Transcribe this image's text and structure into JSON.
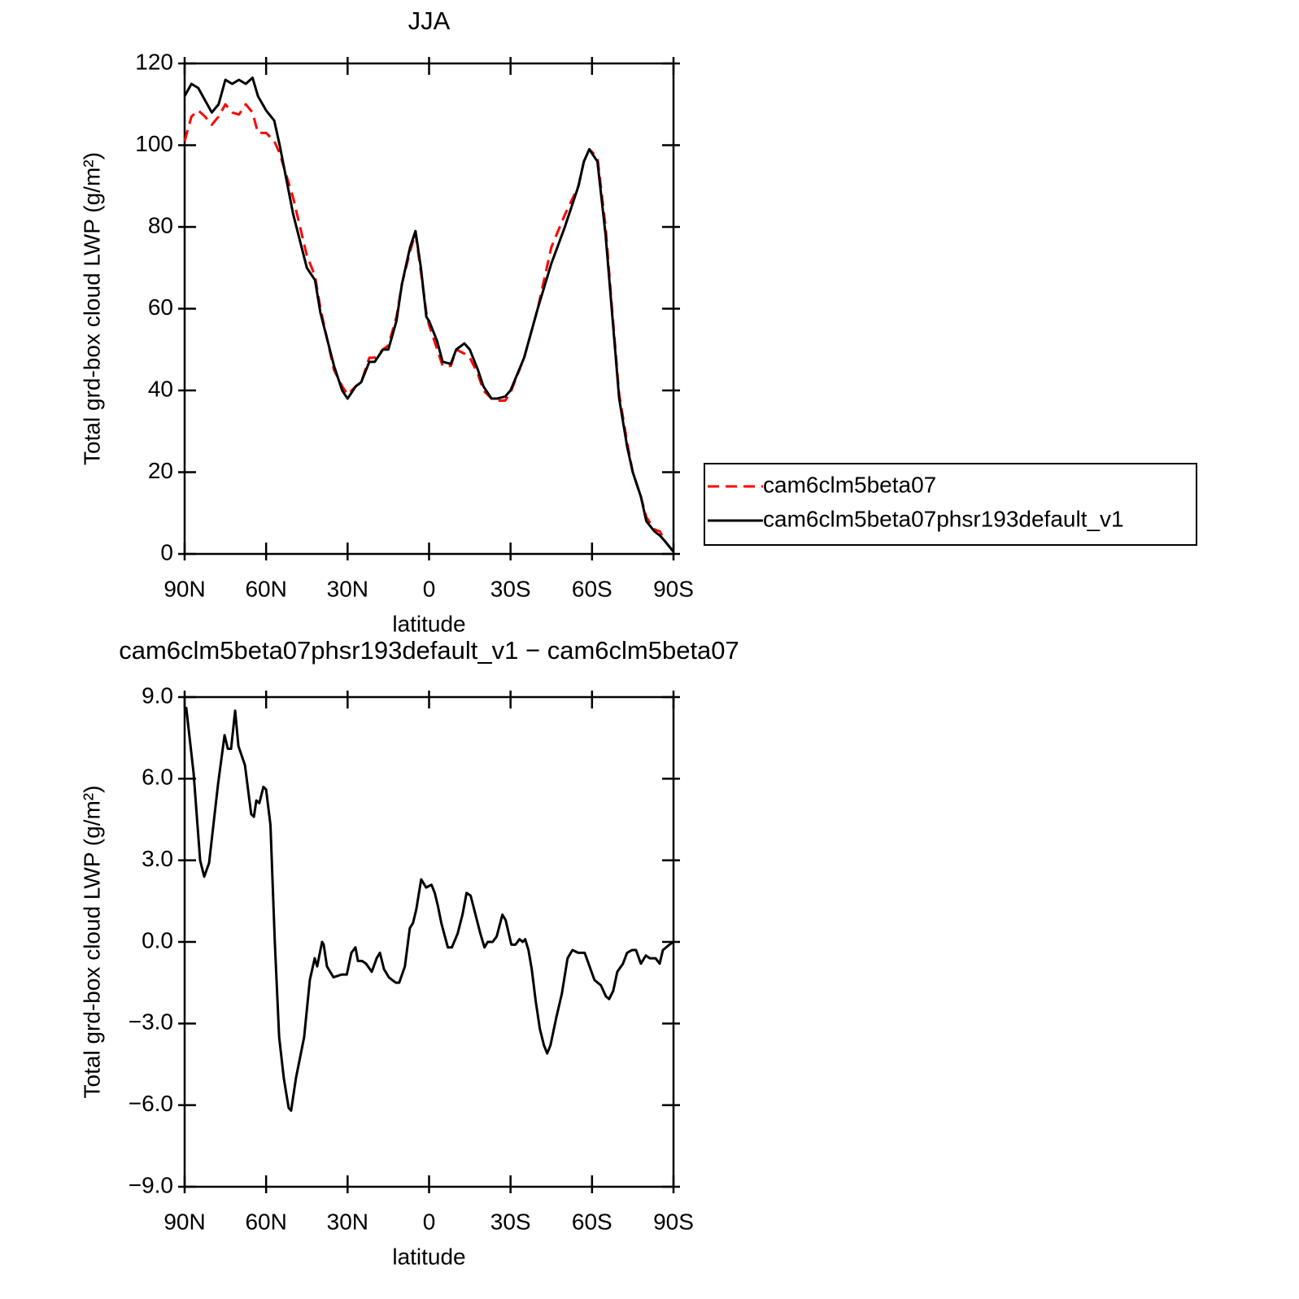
{
  "chart_data": [
    {
      "type": "line",
      "title": "JJA",
      "xlabel": "latitude",
      "ylabel": "Total grd-box cloud LWP (g/m²)",
      "x": [
        90,
        87.5,
        85,
        82.5,
        80,
        77.5,
        75,
        72.5,
        70,
        67.5,
        65,
        63,
        60,
        57,
        55,
        50,
        45,
        42,
        40,
        35,
        32,
        30,
        27,
        25,
        22,
        20,
        17,
        15,
        12,
        10,
        7,
        5,
        3,
        1,
        0,
        -3,
        -5,
        -8,
        -10,
        -13,
        -15,
        -18,
        -20,
        -23,
        -25,
        -28,
        -30,
        -35,
        -40,
        -45,
        -50,
        -55,
        -57,
        -59,
        -62,
        -65,
        -67,
        -70,
        -73,
        -75,
        -78,
        -80,
        -83,
        -85,
        -87,
        -90
      ],
      "series": [
        {
          "name": "cam6clm5beta07",
          "color": "#ff0000",
          "dash": true,
          "values": [
            101,
            107,
            108.5,
            107,
            105,
            107,
            110,
            108,
            107.5,
            110,
            108,
            103,
            103,
            101,
            98,
            87,
            73,
            68,
            60,
            45,
            41,
            39,
            41,
            42,
            48,
            48,
            50,
            51,
            58,
            66,
            74,
            78.5,
            69,
            59,
            56,
            50,
            46,
            46,
            50,
            49,
            48,
            44,
            40,
            38,
            37.5,
            37.5,
            39.5,
            48,
            60,
            75,
            83,
            90,
            96,
            99,
            97,
            80,
            63,
            39,
            27,
            20,
            14,
            9,
            6,
            5.5,
            3,
            0.5
          ]
        },
        {
          "name": "cam6clm5beta07phsr193default_v1",
          "color": "#000000",
          "dash": false,
          "values": [
            112,
            115,
            114,
            111,
            108,
            110,
            116,
            115,
            116,
            115,
            116.5,
            112,
            108.5,
            106,
            100,
            83,
            70,
            67,
            59,
            46,
            40,
            38,
            41,
            42,
            47,
            47,
            50,
            50,
            57,
            66,
            75,
            79,
            70,
            58,
            57,
            52,
            47,
            46.5,
            50,
            51.5,
            50,
            45,
            41,
            38,
            38,
            38.5,
            40,
            48,
            60,
            71,
            80,
            90,
            96,
            99,
            96,
            78,
            62,
            38,
            26,
            20,
            14,
            8,
            5.5,
            4.5,
            3,
            0.5
          ]
        }
      ],
      "xlim": [
        90,
        -90
      ],
      "xticks": [
        {
          "value": 90,
          "label": "90N"
        },
        {
          "value": 60,
          "label": "60N"
        },
        {
          "value": 30,
          "label": "30N"
        },
        0,
        {
          "value": -30,
          "label": "30S"
        },
        {
          "value": -60,
          "label": "60S"
        },
        {
          "value": -90,
          "label": "90S"
        }
      ],
      "ylim": [
        0,
        120
      ],
      "yticks": [
        0,
        20,
        40,
        60,
        80,
        100,
        120
      ],
      "legend": "right"
    },
    {
      "type": "line",
      "title": "cam6clm5beta07phsr193default_v1 − cam6clm5beta07",
      "xlabel": "latitude",
      "ylabel": "Total grd-box cloud LWP (g/m²)",
      "x": [
        90,
        89.4,
        86.7,
        84.3,
        82.8,
        81,
        77.7,
        75.3,
        74.1,
        72.9,
        71.4,
        70.2,
        67.8,
        65.5,
        64.5,
        63.6,
        62.5,
        61,
        60,
        58.4,
        56.8,
        55.2,
        53.5,
        51.7,
        50.8,
        49,
        46,
        43.9,
        42.1,
        41.2,
        39.4,
        38.8,
        37.6,
        35.2,
        32.2,
        30.3,
        28.6,
        27.1,
        26.2,
        24.7,
        23.2,
        21.1,
        19.3,
        18.1,
        16.6,
        14.8,
        13.6,
        12.2,
        11,
        8.9,
        7.1,
        5.9,
        4.7,
        2.9,
        1.1,
        -0.9,
        -2.1,
        -3.3,
        -4.5,
        -6.9,
        -8.4,
        -10.5,
        -12.3,
        -13.8,
        -15.3,
        -17.1,
        -18.9,
        -20.4,
        -21.6,
        -23.4,
        -24.9,
        -27,
        -28.2,
        -30.3,
        -31.8,
        -33.3,
        -34.5,
        -35.4,
        -36.6,
        -37.8,
        -39.3,
        -40.8,
        -42.3,
        -43.5,
        -44.7,
        -46.8,
        -48.9,
        -51,
        -52.8,
        -54.9,
        -57.3,
        -59.1,
        -60.9,
        -63.3,
        -65.1,
        -66.3,
        -67.8,
        -69.3,
        -71.4,
        -72.9,
        -74.7,
        -76.2,
        -78,
        -79.8,
        -81.3,
        -83.4,
        -84.9,
        -86.1,
        -88.5,
        -90
      ],
      "series": [
        {
          "color": "#000000",
          "dash": false,
          "values": [
            8.5,
            8.6,
            6.2,
            3,
            2.4,
            2.9,
            5.8,
            7.6,
            7.1,
            7.1,
            8.5,
            7.2,
            6.5,
            4.7,
            4.6,
            5.2,
            5.1,
            5.7,
            5.6,
            4.3,
            0,
            -3.5,
            -5,
            -6.1,
            -6.2,
            -5,
            -3.5,
            -1.4,
            -0.6,
            -0.9,
            0,
            -0.1,
            -0.9,
            -1.3,
            -1.2,
            -1.2,
            -0.4,
            -0.2,
            -0.7,
            -0.7,
            -0.8,
            -1.1,
            -0.6,
            -0.4,
            -1,
            -1.3,
            -1.4,
            -1.5,
            -1.5,
            -0.9,
            0.5,
            0.7,
            1.2,
            2.3,
            2,
            2.1,
            1.8,
            1.3,
            0.7,
            -0.2,
            -0.2,
            0.3,
            1,
            1.8,
            1.7,
            1,
            0.3,
            -0.2,
            0,
            0,
            0.2,
            1,
            0.8,
            -0.1,
            -0.1,
            0.1,
            0,
            0.1,
            -0.3,
            -1,
            -2.2,
            -3.2,
            -3.8,
            -4.1,
            -3.8,
            -2.8,
            -1.9,
            -0.6,
            -0.3,
            -0.4,
            -0.4,
            -0.9,
            -1.4,
            -1.6,
            -2,
            -2.1,
            -1.8,
            -1.1,
            -0.8,
            -0.4,
            -0.3,
            -0.3,
            -0.8,
            -0.5,
            -0.6,
            -0.6,
            -0.8,
            -0.3,
            -0.1,
            0
          ]
        }
      ],
      "xlim": [
        90,
        -90
      ],
      "xticks": [
        {
          "value": 90,
          "label": "90N"
        },
        {
          "value": 60,
          "label": "60N"
        },
        {
          "value": 30,
          "label": "30N"
        },
        0,
        {
          "value": -30,
          "label": "30S"
        },
        {
          "value": -60,
          "label": "60S"
        },
        {
          "value": -90,
          "label": "90S"
        }
      ],
      "ylim": [
        -9,
        9
      ],
      "yticks": [
        {
          "value": -9,
          "label": "−9.0"
        },
        {
          "value": -6,
          "label": "−6.0"
        },
        {
          "value": -3,
          "label": "−3.0"
        },
        {
          "value": 0,
          "label": "0.0"
        },
        {
          "value": 3,
          "label": "3.0"
        },
        {
          "value": 6,
          "label": "6.0"
        },
        {
          "value": 9,
          "label": "9.0"
        }
      ]
    }
  ]
}
